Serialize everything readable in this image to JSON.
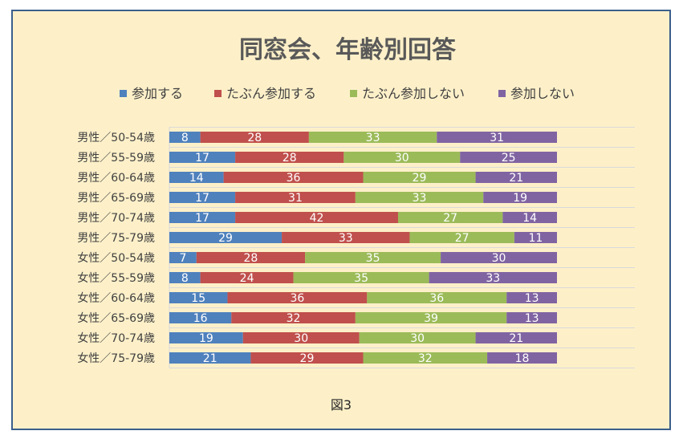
{
  "chart_data": {
    "type": "bar",
    "orientation": "horizontal",
    "stacked": "100%",
    "title": "同窓会、年齢別回答",
    "caption": "図3",
    "categories": [
      "男性／50-54歳",
      "男性／55-59歳",
      "男性／60-64歳",
      "男性／65-69歳",
      "男性／70-74歳",
      "男性／75-79歳",
      "女性／50-54歳",
      "女性／55-59歳",
      "女性／60-64歳",
      "女性／65-69歳",
      "女性／70-74歳",
      "女性／75-79歳"
    ],
    "series": [
      {
        "name": "参加する",
        "color": "#4f81bd",
        "values": [
          8,
          17,
          14,
          17,
          17,
          29,
          7,
          8,
          15,
          16,
          19,
          21
        ]
      },
      {
        "name": "たぶん参加する",
        "color": "#c0504d",
        "values": [
          28,
          28,
          36,
          31,
          42,
          33,
          28,
          24,
          36,
          32,
          30,
          29
        ]
      },
      {
        "name": "たぶん参加しない",
        "color": "#9bbb59",
        "values": [
          33,
          30,
          29,
          33,
          27,
          27,
          35,
          35,
          36,
          39,
          30,
          32
        ]
      },
      {
        "name": "参加しない",
        "color": "#8064a2",
        "values": [
          31,
          25,
          21,
          19,
          14,
          11,
          30,
          33,
          13,
          13,
          21,
          18
        ]
      }
    ],
    "legend_position": "top",
    "grid": true,
    "data_labels": true
  },
  "colors": {
    "background": "#fdf0c9",
    "border": "#3b5f8c",
    "gridline": "#d9d9d9"
  }
}
